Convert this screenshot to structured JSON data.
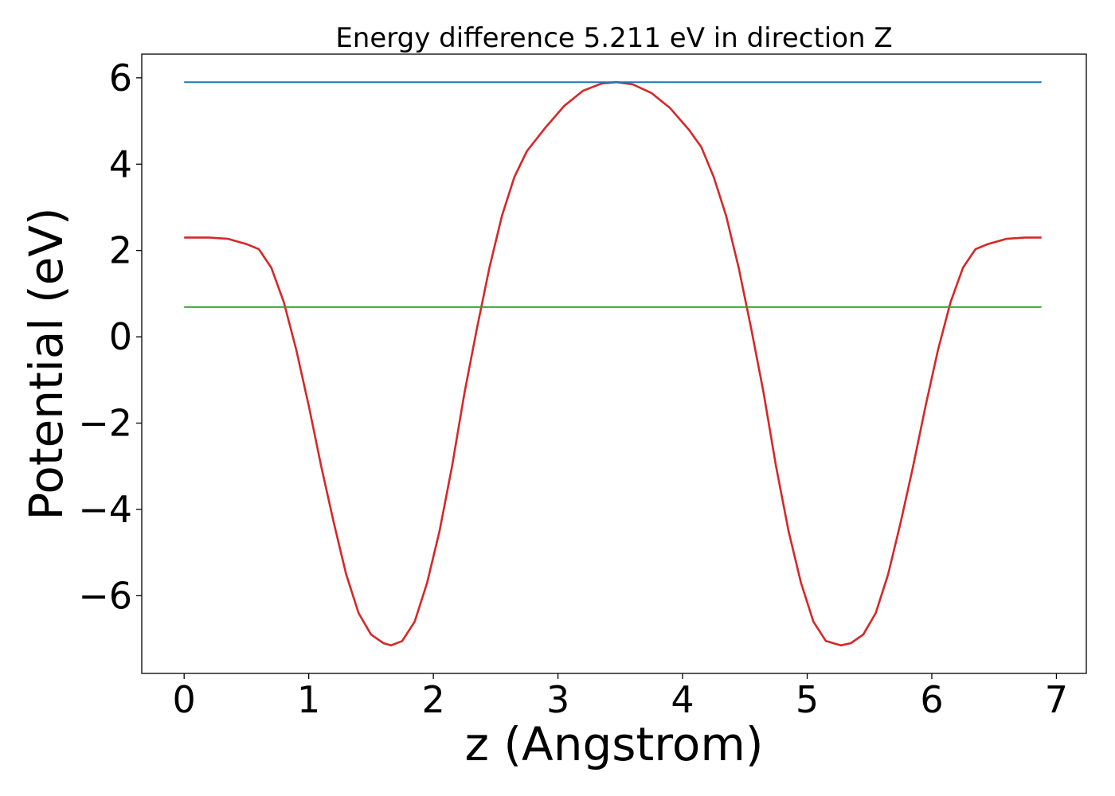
{
  "chart_data": {
    "type": "line",
    "title": "Energy difference 5.211 eV in direction Z",
    "xlabel": "z (Angstrom)",
    "ylabel": "Potential (eV)",
    "xlim": [
      -0.34,
      7.24
    ],
    "ylim": [
      -7.8,
      6.55
    ],
    "x_ticks": [
      0,
      1,
      2,
      3,
      4,
      5,
      6,
      7
    ],
    "x_tick_labels": [
      "0",
      "1",
      "2",
      "3",
      "4",
      "5",
      "6",
      "7"
    ],
    "y_ticks": [
      6,
      4,
      2,
      0,
      -2,
      -4,
      -6
    ],
    "y_tick_labels": [
      "6",
      "4",
      "2",
      "0",
      "−2",
      "−4",
      "−6"
    ],
    "grid": false,
    "series": [
      {
        "color": "#d62728",
        "points": [
          [
            0.0,
            2.3
          ],
          [
            0.2,
            2.3
          ],
          [
            0.35,
            2.27
          ],
          [
            0.5,
            2.15
          ],
          [
            0.6,
            2.03
          ],
          [
            0.7,
            1.6
          ],
          [
            0.8,
            0.8
          ],
          [
            0.9,
            -0.3
          ],
          [
            1.0,
            -1.6
          ],
          [
            1.1,
            -3.0
          ],
          [
            1.2,
            -4.3
          ],
          [
            1.3,
            -5.5
          ],
          [
            1.4,
            -6.4
          ],
          [
            1.5,
            -6.9
          ],
          [
            1.6,
            -7.1
          ],
          [
            1.66,
            -7.15
          ],
          [
            1.75,
            -7.05
          ],
          [
            1.85,
            -6.6
          ],
          [
            1.95,
            -5.7
          ],
          [
            2.05,
            -4.5
          ],
          [
            2.15,
            -3.0
          ],
          [
            2.25,
            -1.3
          ],
          [
            2.35,
            0.2
          ],
          [
            2.45,
            1.6
          ],
          [
            2.55,
            2.8
          ],
          [
            2.65,
            3.7
          ],
          [
            2.75,
            4.3
          ],
          [
            2.9,
            4.85
          ],
          [
            3.05,
            5.35
          ],
          [
            3.2,
            5.7
          ],
          [
            3.35,
            5.87
          ],
          [
            3.47,
            5.9
          ],
          [
            3.6,
            5.85
          ],
          [
            3.75,
            5.65
          ],
          [
            3.9,
            5.3
          ],
          [
            4.05,
            4.8
          ],
          [
            4.15,
            4.4
          ],
          [
            4.25,
            3.7
          ],
          [
            4.35,
            2.8
          ],
          [
            4.45,
            1.6
          ],
          [
            4.55,
            0.2
          ],
          [
            4.65,
            -1.3
          ],
          [
            4.75,
            -3.0
          ],
          [
            4.85,
            -4.5
          ],
          [
            4.95,
            -5.7
          ],
          [
            5.05,
            -6.6
          ],
          [
            5.15,
            -7.05
          ],
          [
            5.27,
            -7.15
          ],
          [
            5.35,
            -7.1
          ],
          [
            5.45,
            -6.9
          ],
          [
            5.55,
            -6.4
          ],
          [
            5.65,
            -5.5
          ],
          [
            5.75,
            -4.3
          ],
          [
            5.85,
            -3.0
          ],
          [
            5.95,
            -1.6
          ],
          [
            6.05,
            -0.3
          ],
          [
            6.15,
            0.8
          ],
          [
            6.25,
            1.6
          ],
          [
            6.35,
            2.03
          ],
          [
            6.45,
            2.15
          ],
          [
            6.6,
            2.27
          ],
          [
            6.75,
            2.3
          ],
          [
            6.88,
            2.3
          ]
        ]
      },
      {
        "color": "#1f77b4",
        "points": [
          [
            0.0,
            5.9
          ],
          [
            6.88,
            5.9
          ]
        ]
      },
      {
        "color": "#2ca02c",
        "points": [
          [
            0.0,
            0.69
          ],
          [
            6.88,
            0.69
          ]
        ]
      }
    ]
  }
}
